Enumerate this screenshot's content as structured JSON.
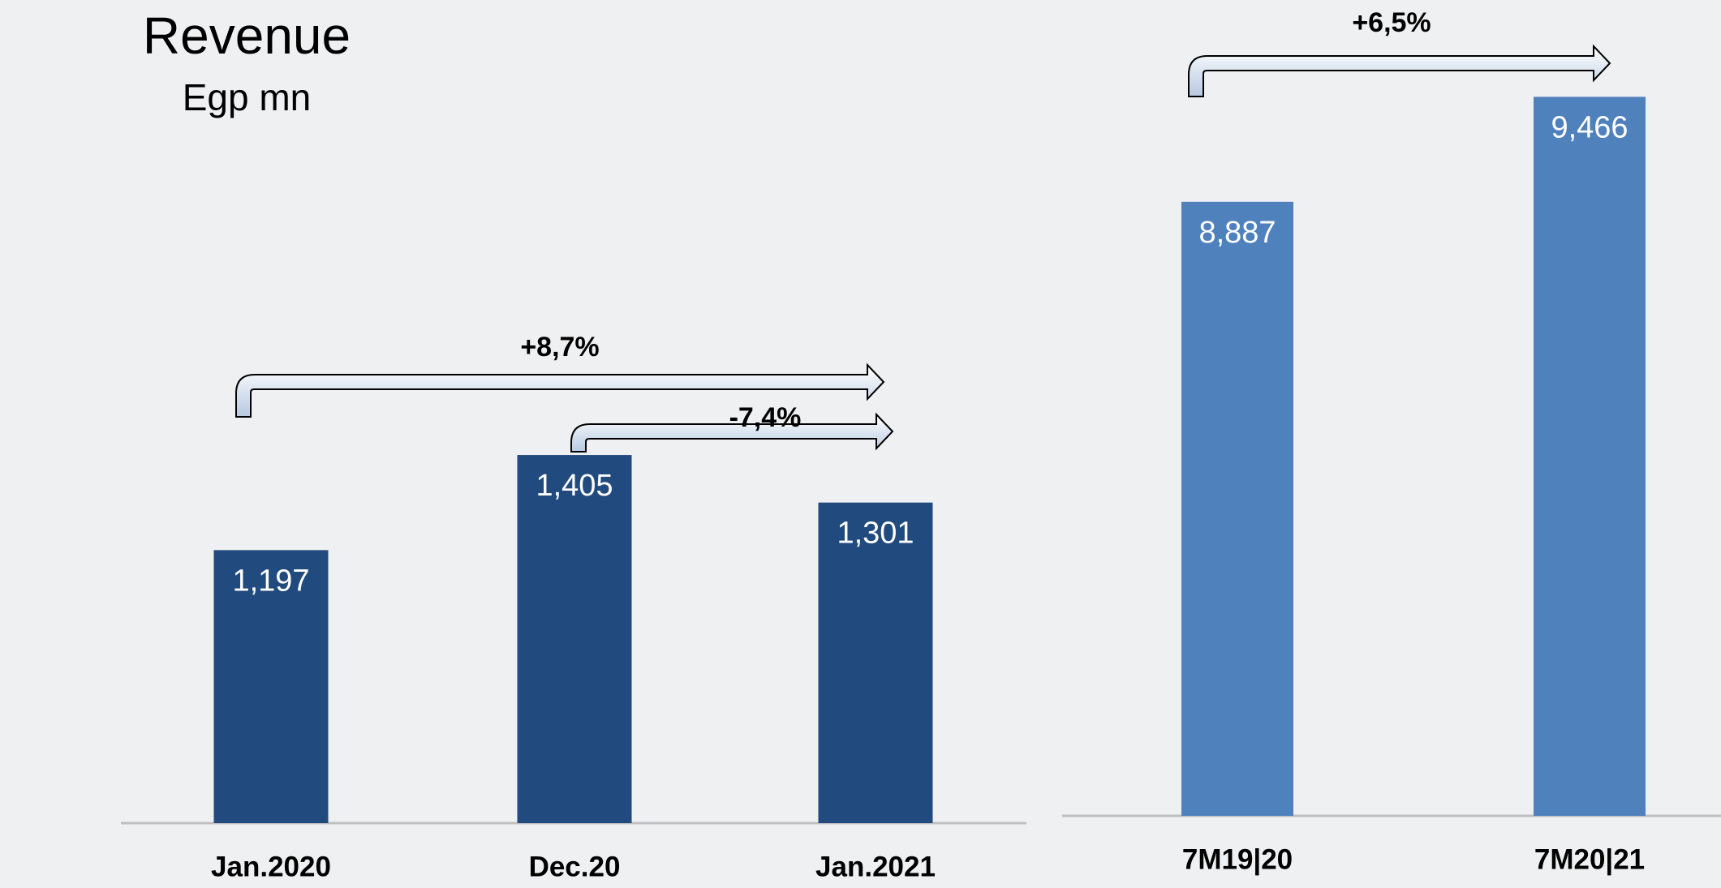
{
  "chart_data": [
    {
      "type": "bar",
      "title": "Revenue",
      "subtitle": "Egp mn",
      "categories": [
        "Jan.2020",
        "Dec.20",
        "Jan.2021"
      ],
      "values": [
        1197,
        1405,
        1301
      ],
      "value_labels": [
        "1,197",
        "1,405",
        "1,301"
      ],
      "color": "#214a7e",
      "ylim": [
        600,
        2400
      ],
      "annotations": [
        "+8,7%",
        "-7,4%"
      ]
    },
    {
      "type": "bar",
      "categories": [
        "7M19|20",
        "7M20|21"
      ],
      "values": [
        8887,
        9466
      ],
      "value_labels": [
        "8,887",
        "9,466"
      ],
      "color": "#4f81bd",
      "ylim": [
        5500,
        10000
      ],
      "annotations": [
        "+6,5%"
      ]
    }
  ]
}
